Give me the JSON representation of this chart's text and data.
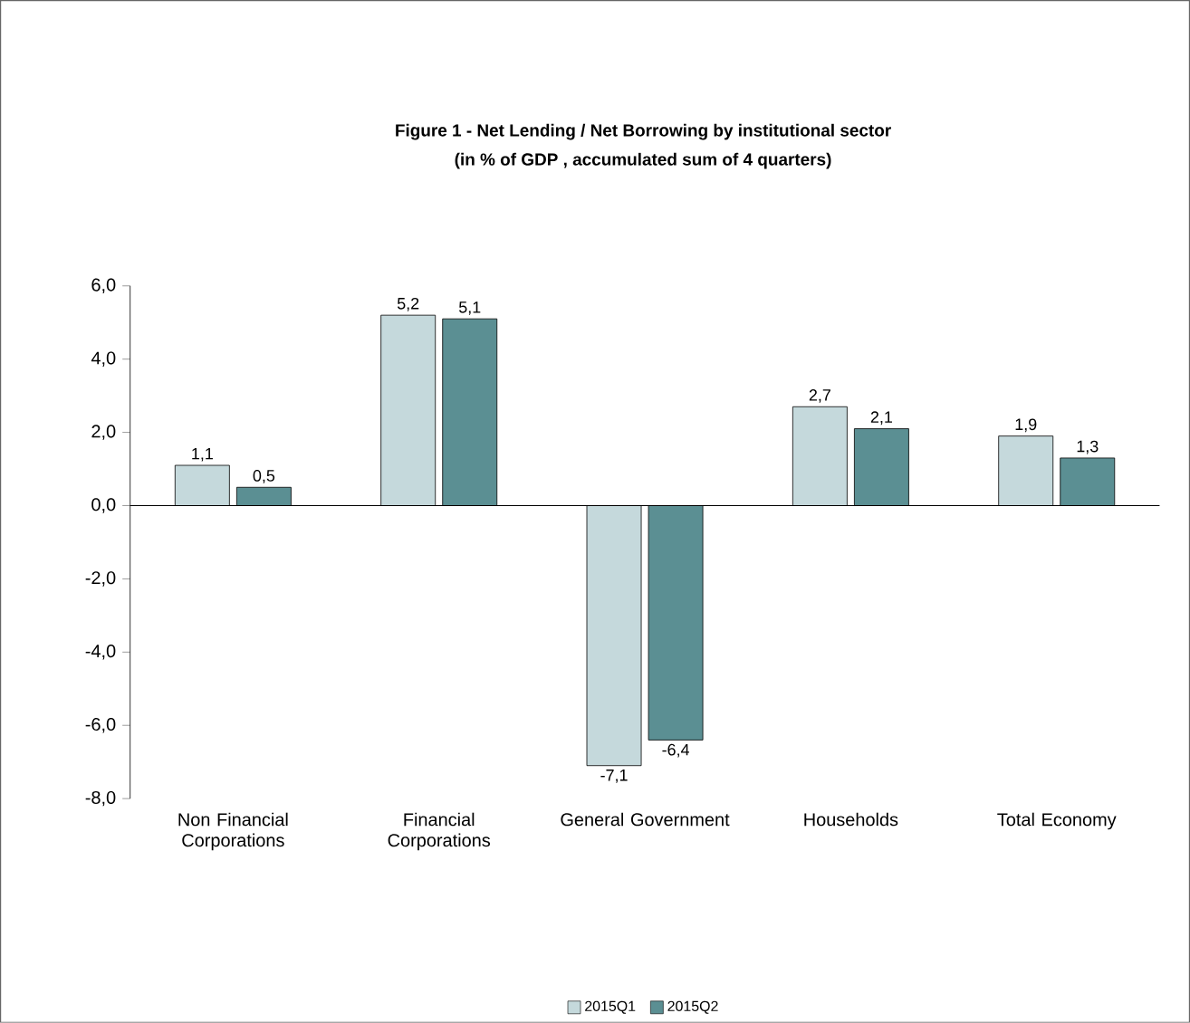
{
  "chart_data": {
    "type": "bar",
    "title": "Figure 1 - Net Lending / Net Borrowing by institutional sector",
    "subtitle": "(in % of GDP , accumulated sum of 4 quarters)",
    "categories": [
      "Non Financial Corporations",
      "Financial Corporations",
      "General Government",
      "Households",
      "Total Economy"
    ],
    "series": [
      {
        "name": "2015Q1",
        "color": "#c5d9dc",
        "values": [
          1.1,
          5.2,
          -7.1,
          2.7,
          1.9
        ],
        "value_labels": [
          "1,1",
          "5,2",
          "-7,1",
          "2,7",
          "1,9"
        ]
      },
      {
        "name": "2015Q2",
        "color": "#5b8f93",
        "values": [
          0.5,
          5.1,
          -6.4,
          2.1,
          1.3
        ],
        "value_labels": [
          "0,5",
          "5,1",
          "-6,4",
          "2,1",
          "1,3"
        ]
      }
    ],
    "ylim": [
      -8,
      6
    ],
    "yticks": [
      {
        "value": -8,
        "label": "-8,0"
      },
      {
        "value": -6,
        "label": "-6,0"
      },
      {
        "value": -4,
        "label": "-4,0"
      },
      {
        "value": -2,
        "label": "-2,0"
      },
      {
        "value": 0,
        "label": "0,0"
      },
      {
        "value": 2,
        "label": "2,0"
      },
      {
        "value": 4,
        "label": "4,0"
      },
      {
        "value": 6,
        "label": "6,0"
      }
    ],
    "legend": "bottom"
  }
}
